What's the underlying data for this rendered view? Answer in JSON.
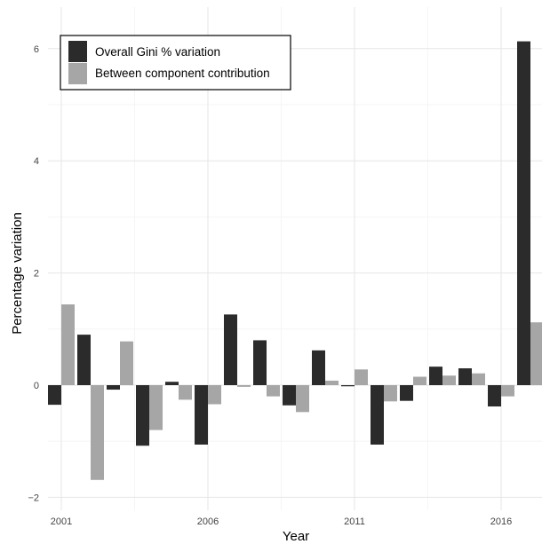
{
  "chart_data": {
    "type": "bar",
    "title": "",
    "xlabel": "Year",
    "ylabel": "Percentage variation",
    "x": [
      2001,
      2002,
      2003,
      2004,
      2005,
      2006,
      2007,
      2008,
      2009,
      2010,
      2011,
      2012,
      2013,
      2014,
      2015,
      2016,
      2017
    ],
    "x_ticks": [
      2001,
      2006,
      2011,
      2016
    ],
    "x_tick_labels": [
      "2001",
      "2006",
      "2011",
      "2016"
    ],
    "y_ticks": [
      -2,
      0,
      2,
      4,
      6
    ],
    "y_tick_labels": [
      "−2",
      "0",
      "2",
      "4",
      "6"
    ],
    "ylim": [
      -2.1,
      6.5
    ],
    "grid": true,
    "legend_position": "top-left",
    "series": [
      {
        "name": "Overall Gini % variation",
        "color": "#2b2b2b",
        "values": [
          -0.35,
          0.9,
          -0.08,
          -1.08,
          0.06,
          -1.06,
          1.26,
          0.8,
          -0.36,
          0.62,
          -0.02,
          -1.06,
          -0.28,
          0.33,
          0.3,
          -0.38,
          6.13
        ]
      },
      {
        "name": "Between component contribution",
        "color": "#a6a6a6",
        "values": [
          1.44,
          -1.69,
          0.78,
          -0.8,
          -0.26,
          -0.34,
          -0.03,
          -0.2,
          -0.48,
          0.08,
          0.28,
          -0.29,
          0.15,
          0.17,
          0.21,
          -0.2,
          1.12
        ]
      }
    ]
  }
}
